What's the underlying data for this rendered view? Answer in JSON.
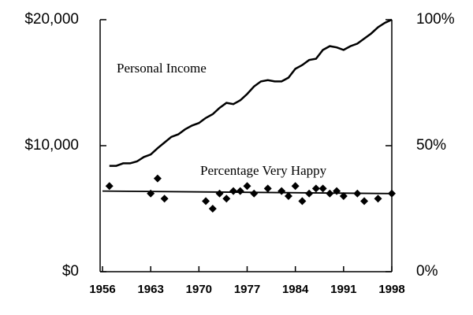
{
  "chart_data": {
    "type": "line",
    "xlim": [
      1956,
      1998
    ],
    "xticks": [
      1956,
      1963,
      1970,
      1977,
      1984,
      1991,
      1998
    ],
    "ylim": [
      0,
      20000
    ],
    "yticks": [
      {
        "value": 0,
        "label": "$0"
      },
      {
        "value": 10000,
        "label": "$10,000"
      },
      {
        "value": 20000,
        "label": "$20,000"
      }
    ],
    "y2lim": [
      0,
      100
    ],
    "y2ticks": [
      {
        "value": 0,
        "label": "0%"
      },
      {
        "value": 50,
        "label": "50%"
      },
      {
        "value": 100,
        "label": "100%"
      }
    ],
    "series": [
      {
        "name": "Personal Income",
        "color": "#000000",
        "style": "line",
        "x": [
          1957,
          1958,
          1959,
          1960,
          1961,
          1962,
          1963,
          1964,
          1965,
          1966,
          1967,
          1968,
          1969,
          1970,
          1971,
          1972,
          1973,
          1974,
          1975,
          1976,
          1977,
          1978,
          1979,
          1980,
          1981,
          1982,
          1983,
          1984,
          1985,
          1986,
          1987,
          1988,
          1989,
          1990,
          1991,
          1992,
          1993,
          1994,
          1995,
          1996,
          1997,
          1998
        ],
        "values": [
          8400,
          8400,
          8600,
          8600,
          8750,
          9100,
          9300,
          9800,
          10250,
          10700,
          10900,
          11300,
          11600,
          11800,
          12200,
          12500,
          13000,
          13400,
          13300,
          13600,
          14100,
          14700,
          15100,
          15200,
          15100,
          15100,
          15400,
          16100,
          16400,
          16800,
          16900,
          17600,
          17900,
          17800,
          17600,
          17900,
          18100,
          18500,
          18900,
          19400,
          19750,
          20000
        ]
      },
      {
        "name": "Percentage Very Happy",
        "color": "#000000",
        "style": "markers",
        "axis": "y2",
        "x": [
          1957,
          1963,
          1964,
          1965,
          1971,
          1972,
          1973,
          1974,
          1975,
          1976,
          1977,
          1978,
          1980,
          1982,
          1983,
          1984,
          1985,
          1986,
          1987,
          1988,
          1989,
          1990,
          1991,
          1993,
          1994,
          1996,
          1998
        ],
        "values": [
          34,
          31,
          37,
          29,
          28,
          25,
          31,
          29,
          32,
          32,
          34,
          31,
          33,
          32,
          30,
          34,
          28,
          31,
          33,
          33,
          31,
          32,
          30,
          31,
          28,
          29,
          31
        ],
        "trend": {
          "x": [
            1956,
            1998
          ],
          "values": [
            32,
            31
          ]
        }
      }
    ]
  }
}
